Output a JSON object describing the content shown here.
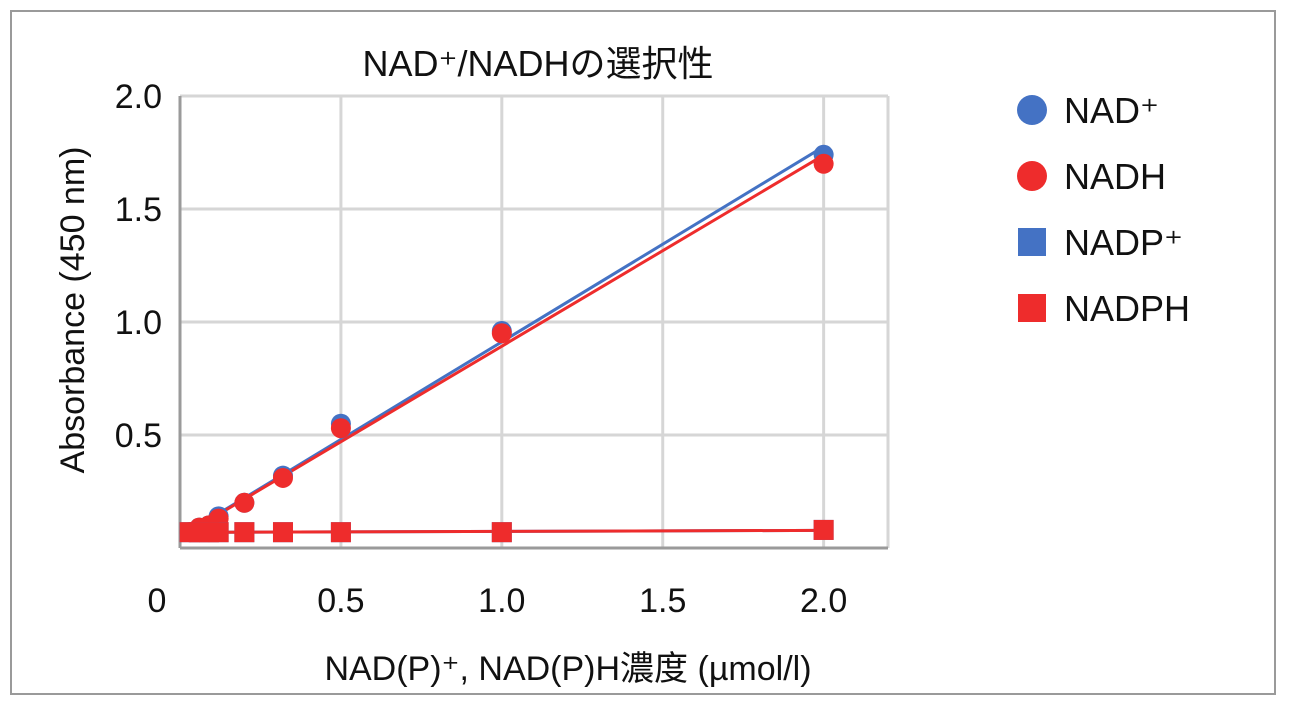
{
  "chart_data": {
    "type": "scatter",
    "title": "NAD⁺/NADHの選択性",
    "xlabel": "NAD(P)⁺, NAD(P)H濃度 (µmol/l)",
    "ylabel": "Absorbance (450 nm)",
    "xlim": [
      0,
      2.2
    ],
    "ylim": [
      0,
      2.0
    ],
    "x_ticks": [
      "0",
      "0.5",
      "1.0",
      "1.5",
      "2.0"
    ],
    "y_ticks": [
      "0.5",
      "1.0",
      "1.5",
      "2.0"
    ],
    "grid": true,
    "legend_position": "right",
    "series": [
      {
        "name": "NAD⁺",
        "marker": "circle",
        "color": "#4472c4",
        "x": [
          0.03,
          0.06,
          0.09,
          0.12,
          0.2,
          0.32,
          0.5,
          1.0,
          2.0
        ],
        "y": [
          0.07,
          0.09,
          0.1,
          0.14,
          0.2,
          0.32,
          0.55,
          0.96,
          1.74
        ]
      },
      {
        "name": "NADH",
        "marker": "circle",
        "color": "#ee2c2c",
        "x": [
          0.03,
          0.06,
          0.09,
          0.12,
          0.2,
          0.32,
          0.5,
          1.0,
          2.0
        ],
        "y": [
          0.07,
          0.09,
          0.1,
          0.13,
          0.2,
          0.31,
          0.53,
          0.95,
          1.7
        ]
      },
      {
        "name": "NADP⁺",
        "marker": "square",
        "color": "#4472c4",
        "x": [
          0.03,
          0.06,
          0.09,
          0.12,
          0.2,
          0.32,
          0.5,
          1.0,
          2.0
        ],
        "y": [
          0.07,
          0.07,
          0.07,
          0.07,
          0.07,
          0.07,
          0.07,
          0.07,
          0.08
        ]
      },
      {
        "name": "NADPH",
        "marker": "square",
        "color": "#ee2c2c",
        "x": [
          0.03,
          0.06,
          0.09,
          0.12,
          0.2,
          0.32,
          0.5,
          1.0,
          2.0
        ],
        "y": [
          0.07,
          0.07,
          0.07,
          0.07,
          0.07,
          0.07,
          0.07,
          0.07,
          0.08
        ]
      }
    ]
  }
}
